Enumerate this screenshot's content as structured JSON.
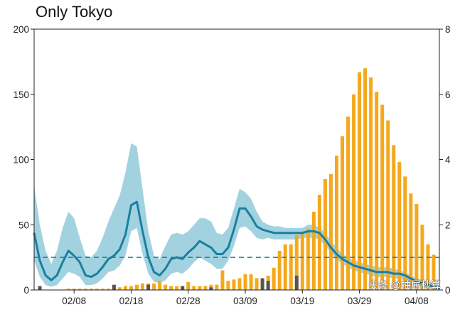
{
  "title": "Only Tokyo",
  "watermark": "头条 @抽屉秒算",
  "chart_data": {
    "type": "bar",
    "title": "Only Tokyo",
    "x_tick_labels": [
      "02/08",
      "02/18",
      "02/28",
      "03/09",
      "03/19",
      "03/29",
      "04/08"
    ],
    "x_tick_days": [
      7,
      17,
      27,
      37,
      47,
      57,
      67
    ],
    "left_axis": {
      "ylim": [
        0,
        200
      ],
      "ticks": [
        0,
        50,
        100,
        150,
        200
      ]
    },
    "right_axis": {
      "ylim": [
        0,
        8
      ],
      "ticks": [
        0,
        2,
        4,
        6,
        8
      ]
    },
    "xlim_days": [
      0,
      71
    ],
    "bars": {
      "name": "daily cases",
      "color": "#f5a81c",
      "dark_color": "#555555",
      "x_days": [
        6,
        7,
        8,
        9,
        10,
        11,
        12,
        13,
        14,
        15,
        16,
        17,
        18,
        19,
        20,
        21,
        22,
        23,
        24,
        25,
        26,
        27,
        28,
        29,
        30,
        31,
        32,
        33,
        34,
        35,
        36,
        37,
        38,
        39,
        40,
        41,
        42,
        43,
        44,
        45,
        46,
        47,
        48,
        49,
        50,
        51,
        52,
        53,
        54,
        55,
        56,
        57,
        58,
        59,
        60,
        61,
        62,
        63,
        64,
        65,
        66,
        67,
        68,
        69,
        70
      ],
      "values": [
        1,
        1,
        1,
        1,
        1,
        1,
        1,
        1,
        2,
        2,
        3,
        3,
        4,
        5,
        5,
        5,
        7,
        4,
        3,
        3,
        2,
        6,
        3,
        3,
        3,
        4,
        4,
        15,
        7,
        8,
        9,
        12,
        12,
        9,
        7,
        11,
        17,
        30,
        35,
        35,
        42,
        45,
        47,
        60,
        73,
        85,
        89,
        103,
        118,
        133,
        150,
        167,
        170,
        163,
        152,
        142,
        130,
        111,
        98,
        87,
        74,
        66,
        50,
        35,
        27
      ],
      "dark_x_days": [
        1,
        14,
        20,
        26,
        31,
        40,
        41,
        46
      ],
      "dark_values": [
        3,
        4,
        4,
        3,
        2,
        9,
        7,
        11
      ]
    },
    "line": {
      "name": "right axis line",
      "color": "#1a7fa0",
      "x_days": [
        0,
        1,
        2,
        3,
        4,
        5,
        6,
        7,
        8,
        9,
        10,
        11,
        12,
        13,
        14,
        15,
        16,
        17,
        18,
        19,
        20,
        21,
        22,
        23,
        24,
        25,
        26,
        27,
        28,
        29,
        30,
        31,
        32,
        33,
        34,
        35,
        36,
        37,
        38,
        39,
        40,
        41,
        42,
        43,
        44,
        45,
        46,
        47,
        48,
        49,
        50,
        51,
        52,
        53,
        54,
        55,
        56,
        57,
        58,
        59,
        60,
        61,
        62,
        63,
        64,
        65,
        66,
        67,
        68,
        69,
        70,
        71
      ],
      "values": [
        1.75,
        0.9,
        0.45,
        0.3,
        0.45,
        0.85,
        1.2,
        1.05,
        0.85,
        0.45,
        0.4,
        0.5,
        0.7,
        0.95,
        1.05,
        1.25,
        1.7,
        2.6,
        2.7,
        1.8,
        1.0,
        0.55,
        0.45,
        0.65,
        0.95,
        1.0,
        0.95,
        1.15,
        1.3,
        1.5,
        1.4,
        1.3,
        1.1,
        1.1,
        1.3,
        1.85,
        2.5,
        2.5,
        2.25,
        1.95,
        1.85,
        1.8,
        1.75,
        1.75,
        1.75,
        1.75,
        1.75,
        1.75,
        1.8,
        1.8,
        1.75,
        1.55,
        1.3,
        1.1,
        0.95,
        0.85,
        0.75,
        0.7,
        0.65,
        0.6,
        0.55,
        0.55,
        0.55,
        0.5,
        0.5,
        0.45,
        0.35,
        0.25,
        0.2,
        0.15,
        0.1,
        0.05
      ],
      "band_upper": [
        3.2,
        2.0,
        1.2,
        0.8,
        1.2,
        1.9,
        2.4,
        2.2,
        1.6,
        1.05,
        1.0,
        1.2,
        1.6,
        2.1,
        2.5,
        2.9,
        3.6,
        4.5,
        4.4,
        3.1,
        1.8,
        1.05,
        0.95,
        1.35,
        1.7,
        1.75,
        1.7,
        1.8,
        2.0,
        2.2,
        2.2,
        2.1,
        1.75,
        1.7,
        1.9,
        2.5,
        3.1,
        3.0,
        2.8,
        2.4,
        2.1,
        2.0,
        1.95,
        1.95,
        1.9,
        1.9,
        1.9,
        1.9,
        2.0,
        2.0,
        1.9,
        1.75,
        1.5,
        1.3,
        1.1,
        1.0,
        0.9,
        0.85,
        0.8,
        0.75,
        0.7,
        0.7,
        0.7,
        0.65,
        0.6,
        0.55,
        0.45,
        0.35,
        0.3,
        0.25,
        0.2,
        0.15
      ],
      "band_lower": [
        0.9,
        0.4,
        0.15,
        0.1,
        0.15,
        0.35,
        0.55,
        0.5,
        0.4,
        0.15,
        0.15,
        0.2,
        0.35,
        0.55,
        0.6,
        0.75,
        1.05,
        1.8,
        1.9,
        1.1,
        0.5,
        0.25,
        0.2,
        0.3,
        0.5,
        0.55,
        0.5,
        0.65,
        0.85,
        1.0,
        0.9,
        0.8,
        0.65,
        0.65,
        0.9,
        1.35,
        1.9,
        1.95,
        1.8,
        1.6,
        1.55,
        1.6,
        1.55,
        1.55,
        1.55,
        1.55,
        1.55,
        1.6,
        1.6,
        1.6,
        1.55,
        1.35,
        1.15,
        0.95,
        0.8,
        0.7,
        0.6,
        0.55,
        0.5,
        0.45,
        0.4,
        0.4,
        0.4,
        0.35,
        0.35,
        0.3,
        0.25,
        0.15,
        0.1,
        0.05,
        0.03,
        0.01
      ]
    },
    "reference_line": {
      "value_right": 1.0,
      "color": "#1a7fa0",
      "style": "dashed"
    },
    "band_color": "#8ec8d8",
    "grid": false
  }
}
